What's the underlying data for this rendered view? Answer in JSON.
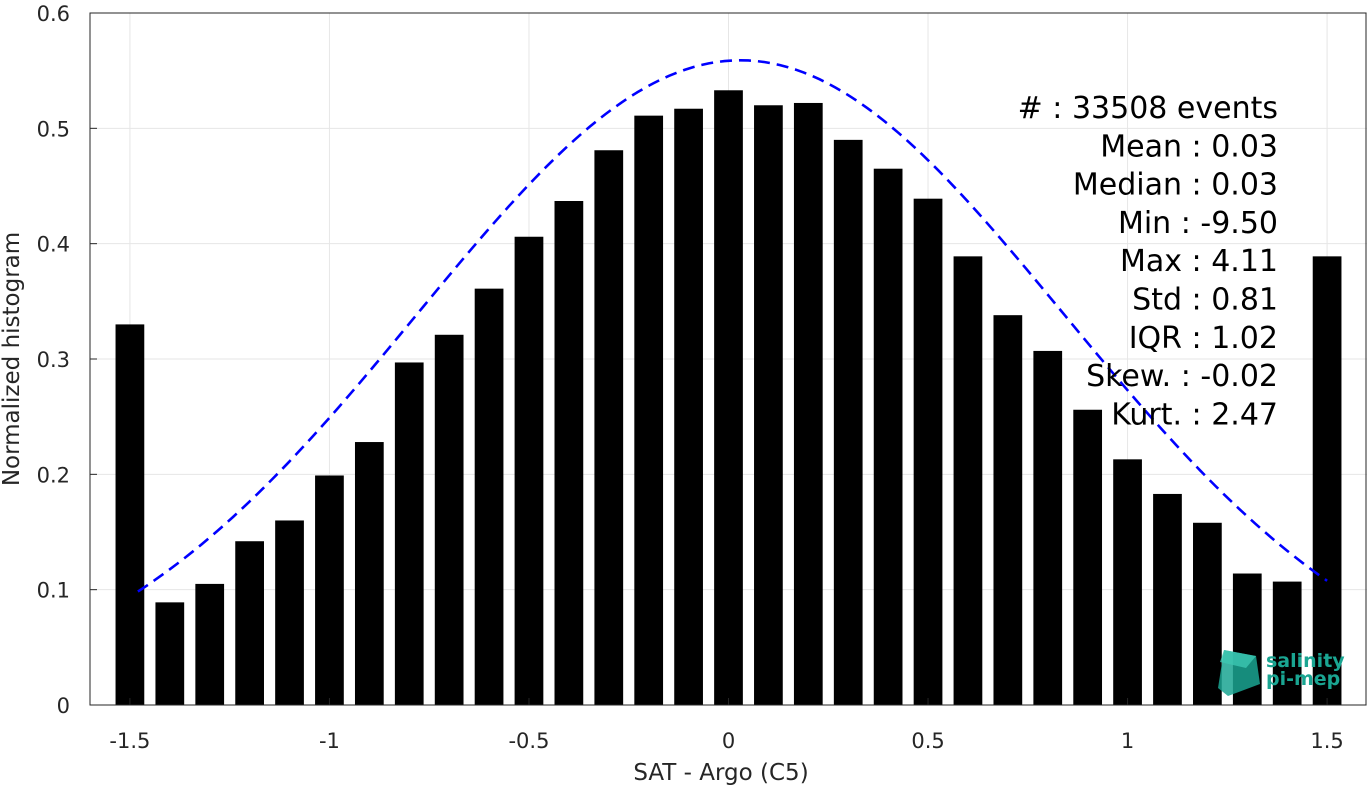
{
  "chart_data": {
    "type": "bar",
    "xlabel": "SAT - Argo (C5)",
    "ylabel": "Normalized histogram",
    "xlim": [
      -1.6,
      1.6
    ],
    "ylim": [
      0,
      0.6
    ],
    "xticks": [
      -1.5,
      -1,
      -0.5,
      0,
      0.5,
      1,
      1.5
    ],
    "xtick_labels": [
      "-1.5",
      "-1",
      "-0.5",
      "0",
      "0.5",
      "1",
      "1.5"
    ],
    "yticks": [
      0,
      0.1,
      0.2,
      0.3,
      0.4,
      0.5,
      0.6
    ],
    "ytick_labels": [
      "0",
      "0.1",
      "0.2",
      "0.3",
      "0.4",
      "0.5",
      "0.6"
    ],
    "grid": true,
    "bar_color": "#000000",
    "x": [
      -1.5,
      -1.4,
      -1.3,
      -1.2,
      -1.1,
      -1.0,
      -0.9,
      -0.8,
      -0.7,
      -0.6,
      -0.5,
      -0.4,
      -0.3,
      -0.2,
      -0.1,
      0.0,
      0.1,
      0.2,
      0.3,
      0.4,
      0.5,
      0.6,
      0.7,
      0.8,
      0.9,
      1.0,
      1.1,
      1.2,
      1.3,
      1.4,
      1.5
    ],
    "values": [
      0.33,
      0.089,
      0.105,
      0.142,
      0.16,
      0.199,
      0.228,
      0.297,
      0.321,
      0.361,
      0.406,
      0.437,
      0.481,
      0.511,
      0.517,
      0.533,
      0.52,
      0.522,
      0.49,
      0.465,
      0.439,
      0.389,
      0.338,
      0.307,
      0.256,
      0.213,
      0.183,
      0.158,
      0.114,
      0.107,
      0.389
    ],
    "fit_curve": {
      "style": "dashed",
      "color": "#0000ff",
      "mean": 0.03,
      "std": 0.81,
      "peak": 0.559,
      "x_range": [
        -1.48,
        1.5
      ]
    },
    "stats": [
      "#  : 33508 events",
      "Mean : 0.03",
      "Median : 0.03",
      "Min : -9.50",
      "Max : 4.11",
      "Std : 0.81",
      "IQR : 1.02",
      "Skew. : -0.02",
      "Kurt. : 2.47"
    ]
  },
  "logo": {
    "line1": "salinity",
    "line2": "pi-mep",
    "color": "#1aa592"
  }
}
